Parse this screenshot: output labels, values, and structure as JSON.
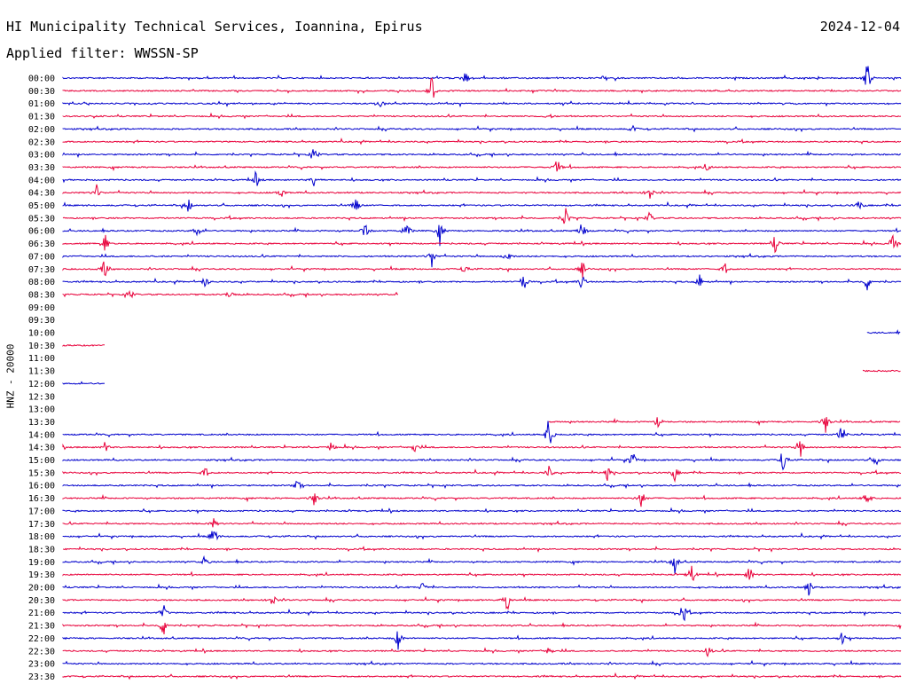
{
  "header": {
    "title": "HI Municipality Technical Services, Ioannina, Epirus",
    "date": "2024-12-04",
    "filter": "Applied filter: WWSSN-SP"
  },
  "chart_data": {
    "type": "line",
    "ylabel": "HNZ - 20000",
    "colors": {
      "even": "#0000cc",
      "odd": "#e8003a"
    },
    "rows": [
      {
        "label": "00:00",
        "span": [
          0,
          1
        ],
        "events": [
          [
            0.48,
            10
          ],
          [
            0.96,
            22
          ]
        ]
      },
      {
        "label": "00:30",
        "span": [
          0,
          1
        ],
        "events": [
          [
            0.44,
            20
          ]
        ]
      },
      {
        "label": "01:00",
        "span": [
          0,
          1
        ],
        "events": [
          [
            0.38,
            6
          ]
        ]
      },
      {
        "label": "01:30",
        "span": [
          0,
          1
        ],
        "events": [
          [
            0.58,
            4
          ]
        ]
      },
      {
        "label": "02:00",
        "span": [
          0,
          1
        ],
        "events": [
          [
            0.68,
            5
          ]
        ]
      },
      {
        "label": "02:30",
        "span": [
          0,
          1
        ],
        "events": []
      },
      {
        "label": "03:00",
        "span": [
          0,
          1
        ],
        "events": [
          [
            0.3,
            12
          ]
        ]
      },
      {
        "label": "03:30",
        "span": [
          0,
          1
        ],
        "events": [
          [
            0.59,
            12
          ],
          [
            0.77,
            6
          ]
        ]
      },
      {
        "label": "04:00",
        "span": [
          0,
          1
        ],
        "events": [
          [
            0.23,
            10
          ],
          [
            0.3,
            8
          ]
        ]
      },
      {
        "label": "04:30",
        "span": [
          0,
          1
        ],
        "events": [
          [
            0.04,
            10
          ],
          [
            0.26,
            8
          ],
          [
            0.7,
            12
          ]
        ]
      },
      {
        "label": "05:00",
        "span": [
          0,
          1
        ],
        "events": [
          [
            0.15,
            10
          ],
          [
            0.35,
            10
          ],
          [
            0.95,
            8
          ]
        ]
      },
      {
        "label": "05:30",
        "span": [
          0,
          1
        ],
        "events": [
          [
            0.6,
            14
          ],
          [
            0.7,
            8
          ]
        ]
      },
      {
        "label": "06:00",
        "span": [
          0,
          1
        ],
        "events": [
          [
            0.16,
            10
          ],
          [
            0.36,
            12
          ],
          [
            0.41,
            14
          ],
          [
            0.45,
            16
          ],
          [
            0.62,
            16
          ]
        ]
      },
      {
        "label": "06:30",
        "span": [
          0,
          1
        ],
        "events": [
          [
            0.05,
            14
          ],
          [
            0.85,
            12
          ],
          [
            0.99,
            14
          ]
        ]
      },
      {
        "label": "07:00",
        "span": [
          0,
          1
        ],
        "events": [
          [
            0.44,
            14
          ],
          [
            0.53,
            10
          ]
        ]
      },
      {
        "label": "07:30",
        "span": [
          0,
          1
        ],
        "events": [
          [
            0.05,
            14
          ],
          [
            0.48,
            8
          ],
          [
            0.62,
            10
          ],
          [
            0.79,
            8
          ]
        ]
      },
      {
        "label": "08:00",
        "span": [
          0,
          1
        ],
        "events": [
          [
            0.17,
            8
          ],
          [
            0.55,
            12
          ],
          [
            0.62,
            14
          ],
          [
            0.76,
            10
          ],
          [
            0.96,
            12
          ]
        ]
      },
      {
        "label": "08:30",
        "span": [
          0,
          0.4
        ],
        "events": [
          [
            0.08,
            8
          ],
          [
            0.2,
            8
          ]
        ]
      },
      {
        "label": "09:00",
        "span": null,
        "events": []
      },
      {
        "label": "09:30",
        "span": null,
        "events": []
      },
      {
        "label": "10:00",
        "span": [
          0.96,
          1
        ],
        "events": []
      },
      {
        "label": "10:30",
        "span": [
          0,
          0.05
        ],
        "events": []
      },
      {
        "label": "11:00",
        "span": null,
        "events": []
      },
      {
        "label": "11:30",
        "span": [
          0.955,
          1
        ],
        "events": []
      },
      {
        "label": "12:00",
        "span": [
          0,
          0.05
        ],
        "events": []
      },
      {
        "label": "12:30",
        "span": null,
        "events": []
      },
      {
        "label": "13:00",
        "span": null,
        "events": []
      },
      {
        "label": "13:30",
        "span": [
          0.58,
          1
        ],
        "events": [
          [
            0.71,
            10
          ],
          [
            0.91,
            14
          ]
        ]
      },
      {
        "label": "14:00",
        "span": [
          0,
          1
        ],
        "events": [
          [
            0.58,
            26
          ],
          [
            0.93,
            18
          ]
        ]
      },
      {
        "label": "14:30",
        "span": [
          0,
          1
        ],
        "events": [
          [
            0.05,
            8
          ],
          [
            0.32,
            8
          ],
          [
            0.42,
            8
          ],
          [
            0.88,
            14
          ]
        ]
      },
      {
        "label": "15:00",
        "span": [
          0,
          1
        ],
        "events": [
          [
            0.68,
            12
          ],
          [
            0.86,
            22
          ],
          [
            0.97,
            8
          ]
        ]
      },
      {
        "label": "15:30",
        "span": [
          0,
          1
        ],
        "events": [
          [
            0.17,
            8
          ],
          [
            0.58,
            8
          ],
          [
            0.65,
            10
          ],
          [
            0.73,
            10
          ]
        ]
      },
      {
        "label": "16:00",
        "span": [
          0,
          1
        ],
        "events": [
          [
            0.28,
            8
          ]
        ]
      },
      {
        "label": "16:30",
        "span": [
          0,
          1
        ],
        "events": [
          [
            0.3,
            10
          ],
          [
            0.69,
            14
          ],
          [
            0.96,
            12
          ]
        ]
      },
      {
        "label": "17:00",
        "span": [
          0,
          1
        ],
        "events": []
      },
      {
        "label": "17:30",
        "span": [
          0,
          1
        ],
        "events": [
          [
            0.18,
            6
          ]
        ]
      },
      {
        "label": "18:00",
        "span": [
          0,
          1
        ],
        "events": [
          [
            0.18,
            14
          ]
        ]
      },
      {
        "label": "18:30",
        "span": [
          0,
          1
        ],
        "events": []
      },
      {
        "label": "19:00",
        "span": [
          0,
          1
        ],
        "events": [
          [
            0.17,
            8
          ],
          [
            0.73,
            14
          ]
        ]
      },
      {
        "label": "19:30",
        "span": [
          0,
          1
        ],
        "events": [
          [
            0.75,
            16
          ],
          [
            0.82,
            14
          ]
        ]
      },
      {
        "label": "20:00",
        "span": [
          0,
          1
        ],
        "events": [
          [
            0.43,
            8
          ],
          [
            0.89,
            14
          ]
        ]
      },
      {
        "label": "20:30",
        "span": [
          0,
          1
        ],
        "events": [
          [
            0.25,
            10
          ],
          [
            0.53,
            16
          ]
        ]
      },
      {
        "label": "21:00",
        "span": [
          0,
          1
        ],
        "events": [
          [
            0.12,
            10
          ],
          [
            0.74,
            18
          ]
        ]
      },
      {
        "label": "21:30",
        "span": [
          0,
          1
        ],
        "events": [
          [
            0.12,
            16
          ]
        ]
      },
      {
        "label": "22:00",
        "span": [
          0,
          1
        ],
        "events": [
          [
            0.4,
            14
          ],
          [
            0.93,
            8
          ]
        ]
      },
      {
        "label": "22:30",
        "span": [
          0,
          1
        ],
        "events": [
          [
            0.58,
            8
          ],
          [
            0.77,
            8
          ]
        ]
      },
      {
        "label": "23:00",
        "span": [
          0,
          1
        ],
        "events": []
      },
      {
        "label": "23:30",
        "span": [
          0,
          1
        ],
        "events": []
      }
    ]
  }
}
